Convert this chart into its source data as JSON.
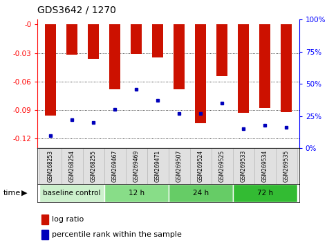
{
  "title": "GDS3642 / 1270",
  "samples": [
    "GSM268253",
    "GSM268254",
    "GSM268255",
    "GSM269467",
    "GSM269469",
    "GSM269471",
    "GSM269507",
    "GSM269524",
    "GSM269525",
    "GSM269533",
    "GSM269534",
    "GSM269535"
  ],
  "log_ratio": [
    -0.096,
    -0.032,
    -0.036,
    -0.068,
    -0.031,
    -0.035,
    -0.068,
    -0.104,
    -0.054,
    -0.093,
    -0.088,
    -0.092
  ],
  "percentile_rank": [
    10,
    22,
    20,
    30,
    46,
    37,
    27,
    27,
    35,
    15,
    18,
    16
  ],
  "groups": [
    {
      "label": "baseline control",
      "start": 0,
      "end": 3,
      "color": "#ccf0cc"
    },
    {
      "label": "12 h",
      "start": 3,
      "end": 6,
      "color": "#88dd88"
    },
    {
      "label": "24 h",
      "start": 6,
      "end": 9,
      "color": "#66cc66"
    },
    {
      "label": "72 h",
      "start": 9,
      "end": 12,
      "color": "#33bb33"
    }
  ],
  "ylim_left": [
    -0.13,
    0.005
  ],
  "yticks_left": [
    0.0,
    -0.03,
    -0.06,
    -0.09,
    -0.12
  ],
  "ylim_right": [
    0,
    100
  ],
  "yticks_right": [
    0,
    25,
    50,
    75,
    100
  ],
  "bar_color": "#cc1100",
  "dot_color": "#0000bb",
  "time_label": "time",
  "legend_logratio": "log ratio",
  "legend_percentile": "percentile rank within the sample"
}
